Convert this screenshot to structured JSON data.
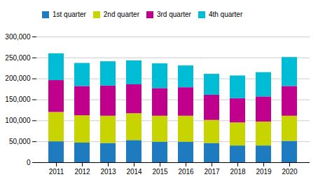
{
  "chart_data": {
    "type": "bar",
    "stacked": true,
    "categories": [
      "2011",
      "2012",
      "2013",
      "2014",
      "2015",
      "2016",
      "2017",
      "2018",
      "2019",
      "2020"
    ],
    "series": [
      {
        "name": "1st quarter",
        "color": "#1f7bbf",
        "values": [
          50000,
          47000,
          46000,
          53000,
          49000,
          49000,
          46000,
          40000,
          40000,
          51000
        ]
      },
      {
        "name": "2nd quarter",
        "color": "#c8d400",
        "values": [
          70000,
          65000,
          65000,
          64000,
          62000,
          62000,
          55000,
          55000,
          57000,
          60000
        ]
      },
      {
        "name": "3rd quarter",
        "color": "#c0008c",
        "values": [
          76000,
          70000,
          72000,
          69000,
          66000,
          68000,
          60000,
          58000,
          60000,
          71000
        ]
      },
      {
        "name": "4th quarter",
        "color": "#00bcd4",
        "values": [
          64000,
          55000,
          58000,
          57000,
          59000,
          52000,
          50000,
          54000,
          58000,
          69000
        ]
      }
    ],
    "ylim": [
      0,
      300000
    ],
    "yticks": [
      0,
      {
        "value": 50000,
        "label": "50,000"
      },
      {
        "value": 100000,
        "label": "100,000"
      },
      {
        "value": 150000,
        "label": "150,000"
      },
      {
        "value": 200000,
        "label": "200,000"
      },
      {
        "value": 250000,
        "label": "250,000"
      },
      {
        "value": 300000,
        "label": "300,000"
      }
    ],
    "grid": true,
    "legend": "upper left"
  }
}
